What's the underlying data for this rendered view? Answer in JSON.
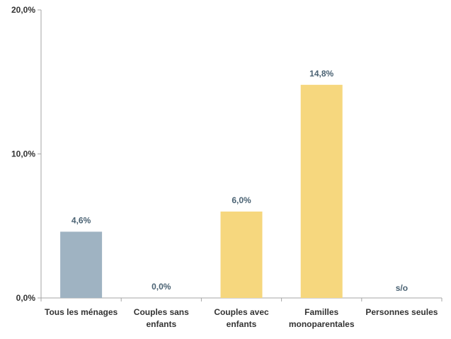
{
  "chart_data": {
    "type": "bar",
    "categories": [
      [
        "Tous les ménages"
      ],
      [
        "Couples sans",
        "enfants"
      ],
      [
        "Couples avec",
        "enfants"
      ],
      [
        "Familles",
        "monoparentales"
      ],
      [
        "Personnes seules"
      ]
    ],
    "values": [
      4.6,
      0.0,
      6.0,
      14.8,
      null
    ],
    "data_labels": [
      "4,6%",
      "0,0%",
      "6,0%",
      "14,8%",
      "s/o"
    ],
    "bar_colors": [
      "#9fb3c2",
      "#f6d77e",
      "#f6d77e",
      "#f6d77e",
      "#f6d77e"
    ],
    "ylim": [
      0,
      20
    ],
    "y_ticks": [
      0,
      10,
      20
    ],
    "y_tick_labels": [
      "0,0%",
      "10,0%",
      "20,0%"
    ],
    "grid": false,
    "legend": "none",
    "title": "",
    "xlabel": "",
    "ylabel": ""
  }
}
